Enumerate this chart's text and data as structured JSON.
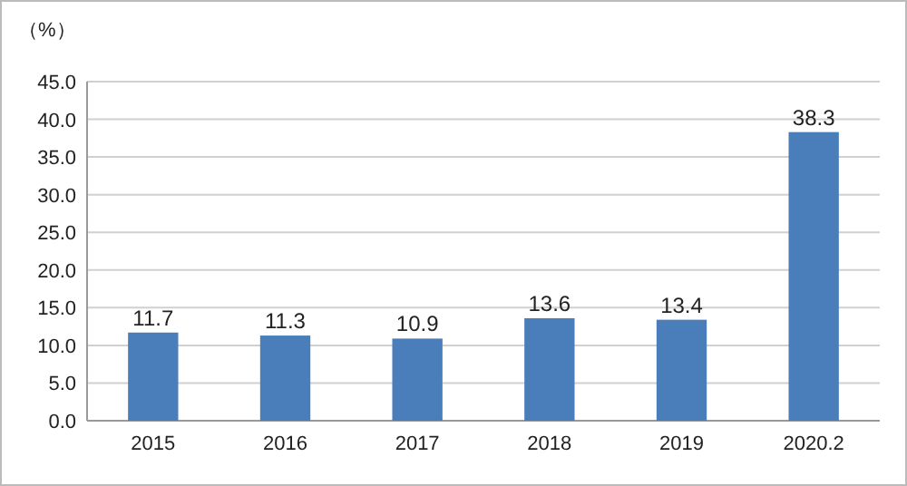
{
  "chart_data": {
    "type": "bar",
    "ylabel": "（%）",
    "categories": [
      "2015",
      "2016",
      "2017",
      "2018",
      "2019",
      "2020.2"
    ],
    "values": [
      11.7,
      11.3,
      10.9,
      13.6,
      13.4,
      38.3
    ],
    "color": "#4a7ebb",
    "ylim": [
      0,
      45
    ],
    "yticks": [
      {
        "value": 0,
        "label": "0.0"
      },
      {
        "value": 5,
        "label": "5.0"
      },
      {
        "value": 10,
        "label": "10.0"
      },
      {
        "value": 15,
        "label": "15.0"
      },
      {
        "value": 20,
        "label": "20.0"
      },
      {
        "value": 25,
        "label": "25.0"
      },
      {
        "value": 30,
        "label": "30.0"
      },
      {
        "value": 35,
        "label": "35.0"
      },
      {
        "value": 40,
        "label": "40.0"
      },
      {
        "value": 45,
        "label": "45.0"
      }
    ],
    "grid": "y",
    "data_labels": true
  }
}
